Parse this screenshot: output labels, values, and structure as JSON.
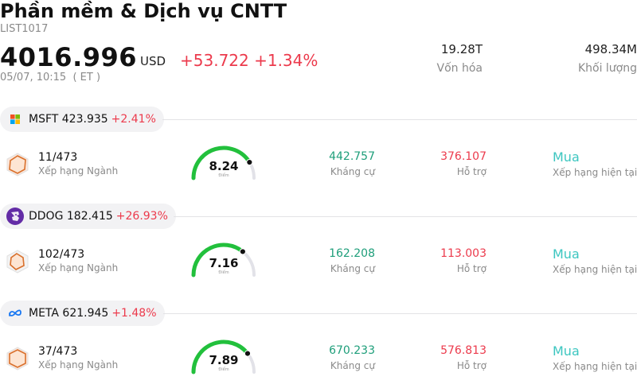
{
  "header": {
    "title": "Phần mềm & Dịch vụ CNTT",
    "code": "LIST1017",
    "price": "4016.996",
    "currency": "USD",
    "change": "+53.722 +1.34%",
    "timestamp": "05/07, 10:15  ( ET )",
    "market_cap_value": "19.28T",
    "market_cap_label": "Vốn hóa",
    "volume_value": "498.34M",
    "volume_label": "Khối lượng"
  },
  "colors": {
    "negative_red": "#ec3a4c",
    "resistance_green": "#1e9e7a",
    "rating_teal": "#3cc6c0",
    "gauge_green": "#22c03c"
  },
  "stocks": [
    {
      "symbol_price": "MSFT 423.935",
      "change_pct": "+2.41%",
      "logo": "microsoft-logo",
      "rank": "11/473",
      "rank_label": "Xếp hạng Ngành",
      "score": "8.24",
      "score_value": 8.24,
      "score_sub": "Điểm",
      "resistance": "442.757",
      "resistance_label": "Kháng cự",
      "support": "376.107",
      "support_label": "Hỗ trợ",
      "rating": "Mua",
      "rating_label": "Xếp hạng hiện tại"
    },
    {
      "symbol_price": "DDOG 182.415",
      "change_pct": "+26.93%",
      "logo": "datadog-logo",
      "rank": "102/473",
      "rank_label": "Xếp hạng Ngành",
      "score": "7.16",
      "score_value": 7.16,
      "score_sub": "Điểm",
      "resistance": "162.208",
      "resistance_label": "Kháng cự",
      "support": "113.003",
      "support_label": "Hỗ trợ",
      "rating": "Mua",
      "rating_label": "Xếp hạng hiện tại"
    },
    {
      "symbol_price": "META 621.945",
      "change_pct": "+1.48%",
      "logo": "meta-logo",
      "rank": "37/473",
      "rank_label": "Xếp hạng Ngành",
      "score": "7.89",
      "score_value": 7.89,
      "score_sub": "Điểm",
      "resistance": "670.233",
      "resistance_label": "Kháng cự",
      "support": "576.813",
      "support_label": "Hỗ trợ",
      "rating": "Mua",
      "rating_label": "Xếp hạng hiện tại"
    }
  ]
}
